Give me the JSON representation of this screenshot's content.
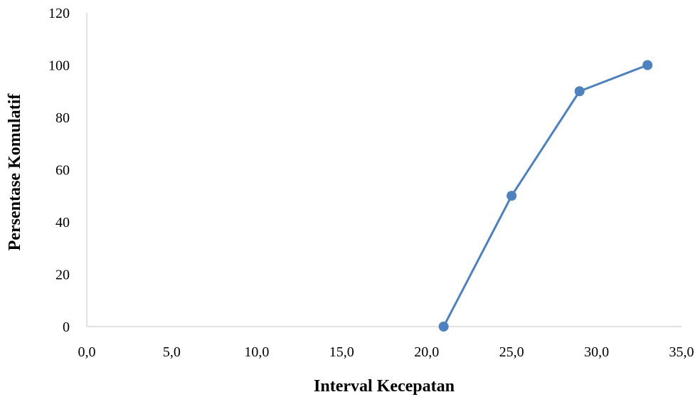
{
  "chart_data": {
    "type": "line",
    "title": "",
    "xlabel": "Interval Kecepatan",
    "ylabel": "Persentase Komulatif",
    "xlim": [
      0,
      35
    ],
    "ylim": [
      0,
      120
    ],
    "x_ticks": [
      "0,0",
      "5,0",
      "10,0",
      "15,0",
      "20,0",
      "25,0",
      "30,0",
      "35,0"
    ],
    "y_ticks": [
      "0",
      "20",
      "40",
      "60",
      "80",
      "100",
      "120"
    ],
    "grid": false,
    "legend": "none",
    "series": [
      {
        "x": [
          21,
          25,
          29,
          33
        ],
        "y": [
          0,
          50,
          90,
          100
        ],
        "color": "#4F81BD"
      }
    ]
  }
}
